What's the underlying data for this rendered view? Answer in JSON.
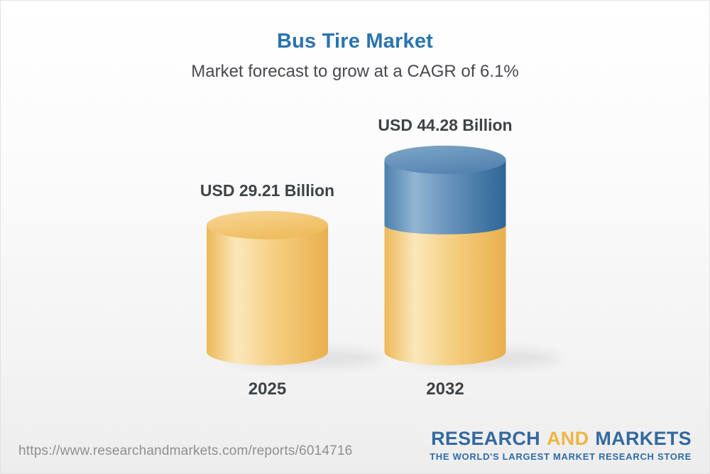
{
  "header": {
    "title": "Bus Tire Market",
    "subtitle": "Market forecast to grow at a CAGR of 6.1%"
  },
  "chart_data": {
    "type": "bar",
    "subtype": "3d-cylinder",
    "categories": [
      "2025",
      "2032"
    ],
    "values": [
      29.21,
      44.28
    ],
    "value_labels": [
      "USD 29.21 Billion",
      "USD 44.28 Billion"
    ],
    "unit": "USD Billion",
    "title": "Bus Tire Market",
    "subtitle": "Market forecast to grow at a CAGR of 6.1%",
    "cagr_percent": 6.1,
    "xlabel": "",
    "ylabel": "",
    "legend": "none",
    "grid": false,
    "notes": "2032 bar shows 2025 base in yellow with incremental growth segment in blue on top",
    "colors": {
      "base_yellow": "#F2C161",
      "growth_blue": "#4A7FAE",
      "title_blue": "#2B73AE",
      "label_dark": "#3E4347"
    }
  },
  "footer": {
    "url": "https://www.researchandmarkets.com/reports/6014716",
    "logo": {
      "word1": "RESEARCH",
      "word2": "AND",
      "word3": "MARKETS",
      "tagline": "THE WORLD'S LARGEST MARKET RESEARCH STORE",
      "blue": "#33699F",
      "gold": "#F0B543"
    }
  }
}
